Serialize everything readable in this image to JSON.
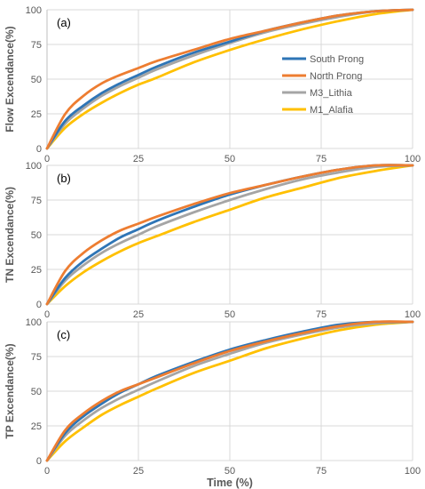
{
  "chart_data": [
    {
      "type": "line",
      "panel_label": "(a)",
      "ylabel": "Flow Excendance(%)",
      "xlim": [
        0,
        100
      ],
      "ylim": [
        0,
        100
      ],
      "xticks": [
        "0",
        "25",
        "50",
        "75",
        "100"
      ],
      "yticks": [
        "0",
        "25",
        "50",
        "75",
        "100"
      ],
      "grid": true,
      "legend": {
        "position": "right-center"
      },
      "series": [
        {
          "name": "South Prong",
          "color": "#2E75B6",
          "x": [
            0,
            5,
            10,
            15,
            20,
            25,
            30,
            40,
            50,
            60,
            70,
            80,
            90,
            100
          ],
          "y": [
            0,
            20,
            31,
            40,
            47,
            53,
            59,
            69,
            77,
            85,
            91,
            96,
            99,
            100
          ]
        },
        {
          "name": "North Prong",
          "color": "#ED7D31",
          "x": [
            0,
            5,
            10,
            15,
            20,
            25,
            30,
            40,
            50,
            60,
            70,
            80,
            90,
            100
          ],
          "y": [
            0,
            25,
            38,
            47,
            53,
            58,
            63,
            71,
            79,
            85,
            91,
            96,
            99,
            100
          ]
        },
        {
          "name": "M3_Lithia",
          "color": "#A5A5A5",
          "x": [
            0,
            5,
            10,
            15,
            20,
            25,
            30,
            40,
            50,
            60,
            70,
            80,
            90,
            100
          ],
          "y": [
            0,
            18,
            29,
            38,
            45,
            51,
            57,
            67,
            76,
            84,
            90,
            95,
            99,
            100
          ]
        },
        {
          "name": "M1_Alafia",
          "color": "#FFC000",
          "x": [
            0,
            5,
            10,
            15,
            20,
            25,
            30,
            40,
            50,
            60,
            70,
            80,
            90,
            100
          ],
          "y": [
            0,
            15,
            25,
            33,
            40,
            46,
            51,
            62,
            71,
            79,
            86,
            92,
            97,
            100
          ]
        }
      ]
    },
    {
      "type": "line",
      "panel_label": "(b)",
      "ylabel": "TN Excendance(%)",
      "xlim": [
        0,
        100
      ],
      "ylim": [
        0,
        100
      ],
      "xticks": [
        "0",
        "25",
        "50",
        "75",
        "100"
      ],
      "yticks": [
        "0",
        "25",
        "50",
        "75",
        "100"
      ],
      "grid": true,
      "series": [
        {
          "name": "South Prong",
          "color": "#2E75B6",
          "x": [
            0,
            5,
            10,
            15,
            20,
            25,
            30,
            40,
            50,
            60,
            70,
            80,
            90,
            100
          ],
          "y": [
            0,
            19,
            31,
            40,
            48,
            54,
            60,
            70,
            79,
            86,
            92,
            97,
            100,
            100
          ]
        },
        {
          "name": "North Prong",
          "color": "#ED7D31",
          "x": [
            0,
            5,
            10,
            15,
            20,
            25,
            30,
            40,
            50,
            60,
            70,
            80,
            90,
            100
          ],
          "y": [
            0,
            24,
            37,
            46,
            53,
            58,
            63,
            72,
            80,
            86,
            92,
            97,
            100,
            100
          ]
        },
        {
          "name": "M3_Lithia",
          "color": "#A5A5A5",
          "x": [
            0,
            5,
            10,
            15,
            20,
            25,
            30,
            40,
            50,
            60,
            70,
            80,
            90,
            100
          ],
          "y": [
            0,
            17,
            28,
            37,
            44,
            50,
            56,
            66,
            75,
            83,
            90,
            95,
            99,
            100
          ]
        },
        {
          "name": "M1_Alafia",
          "color": "#FFC000",
          "x": [
            0,
            5,
            10,
            15,
            20,
            25,
            30,
            40,
            50,
            60,
            70,
            80,
            90,
            100
          ],
          "y": [
            0,
            13,
            23,
            31,
            38,
            44,
            49,
            59,
            68,
            77,
            84,
            91,
            96,
            100
          ]
        }
      ]
    },
    {
      "type": "line",
      "panel_label": "(c)",
      "ylabel": "TP Excendance(%)",
      "xlabel": "Time (%)",
      "xlim": [
        0,
        100
      ],
      "ylim": [
        0,
        100
      ],
      "xticks": [
        "0",
        "25",
        "50",
        "75",
        "100"
      ],
      "yticks": [
        "0",
        "25",
        "50",
        "75",
        "100"
      ],
      "grid": true,
      "series": [
        {
          "name": "South Prong",
          "color": "#2E75B6",
          "x": [
            0,
            5,
            10,
            15,
            20,
            25,
            30,
            40,
            50,
            60,
            70,
            80,
            90,
            100
          ],
          "y": [
            0,
            20,
            32,
            41,
            49,
            55,
            61,
            71,
            80,
            87,
            93,
            98,
            100,
            100
          ]
        },
        {
          "name": "North Prong",
          "color": "#ED7D31",
          "x": [
            0,
            5,
            10,
            15,
            20,
            25,
            30,
            40,
            50,
            60,
            70,
            80,
            90,
            100
          ],
          "y": [
            0,
            22,
            34,
            43,
            50,
            55,
            60,
            70,
            79,
            86,
            92,
            97,
            100,
            100
          ]
        },
        {
          "name": "M3_Lithia",
          "color": "#A5A5A5",
          "x": [
            0,
            5,
            10,
            15,
            20,
            25,
            30,
            40,
            50,
            60,
            70,
            80,
            90,
            100
          ],
          "y": [
            0,
            18,
            29,
            38,
            45,
            51,
            57,
            68,
            77,
            85,
            91,
            96,
            99,
            100
          ]
        },
        {
          "name": "M1_Alafia",
          "color": "#FFC000",
          "x": [
            0,
            5,
            10,
            15,
            20,
            25,
            30,
            40,
            50,
            60,
            70,
            80,
            90,
            100
          ],
          "y": [
            0,
            14,
            24,
            33,
            40,
            46,
            52,
            63,
            72,
            81,
            88,
            94,
            98,
            100
          ]
        }
      ]
    }
  ]
}
